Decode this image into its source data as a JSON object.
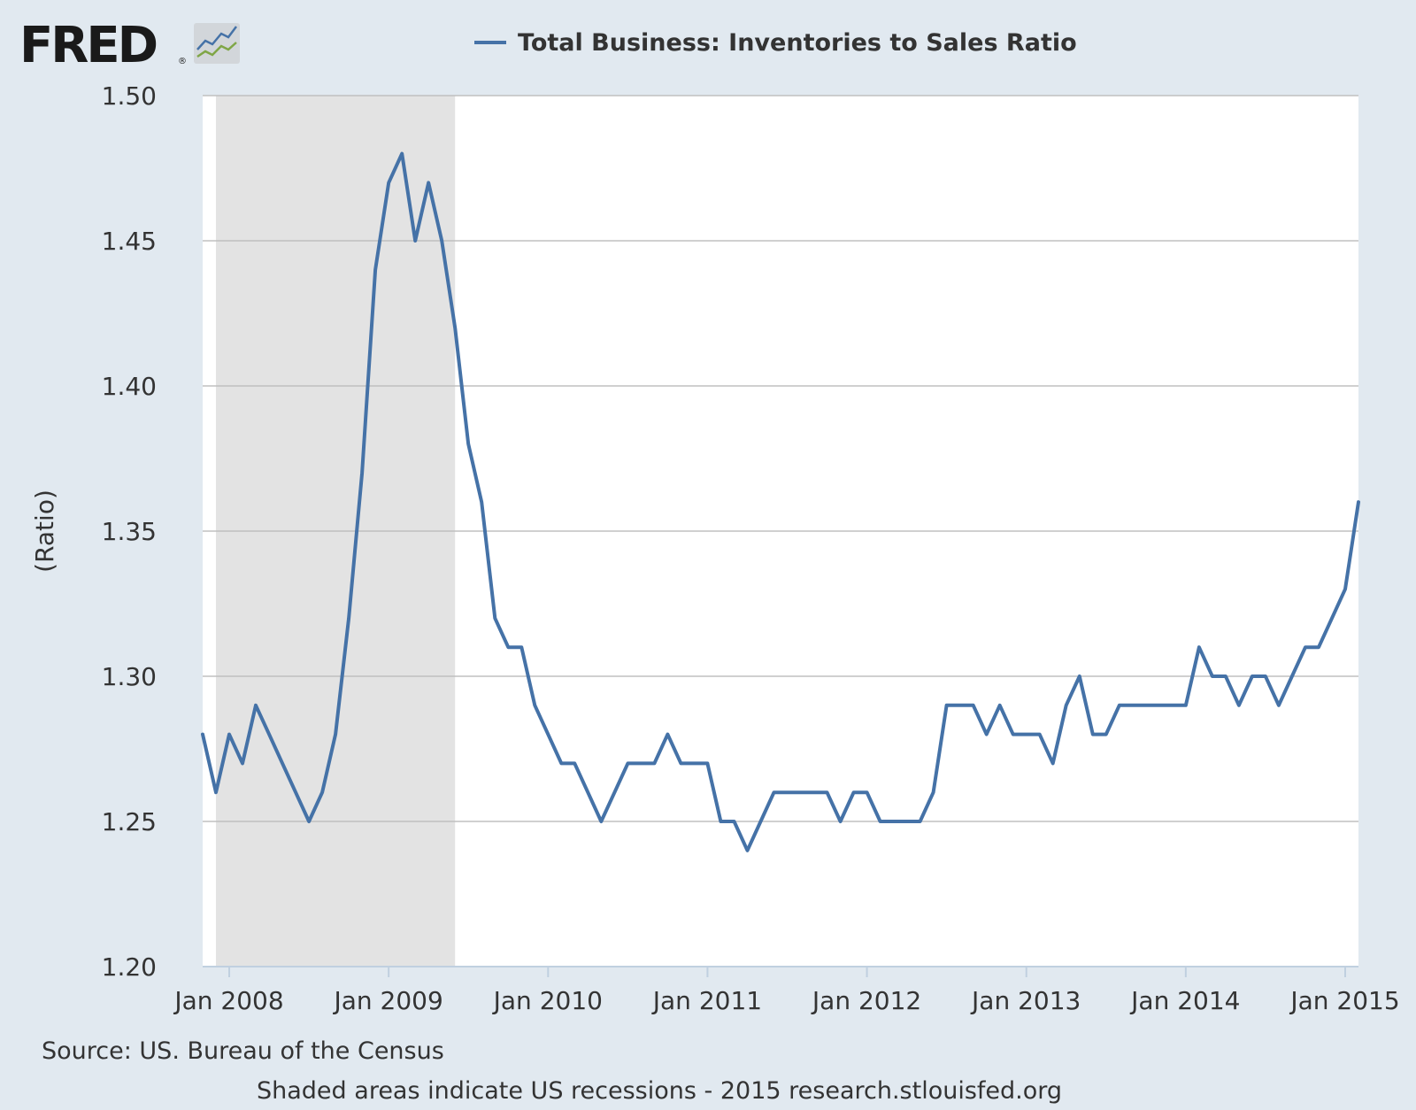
{
  "header": {
    "logo_text": "FRED",
    "logo_registered": "®",
    "legend_label": "Total Business: Inventories to Sales Ratio"
  },
  "footer": {
    "source": "Source: US. Bureau of the Census",
    "note": "Shaded areas indicate US recessions - 2015 research.stlouisfed.org"
  },
  "colors": {
    "background": "#e1e9f0",
    "plot_background": "#ffffff",
    "series": "#4572a7",
    "recession": "#e3e3e3",
    "grid": "#c0c0c0",
    "text": "#333333"
  },
  "icons": {
    "logo_chart": "fred-line-chart-icon"
  },
  "chart_data": {
    "type": "line",
    "title": "",
    "xlabel": "",
    "ylabel": "(Ratio)",
    "ylim": [
      1.2,
      1.5
    ],
    "xlim": [
      "2007-11",
      "2015-02"
    ],
    "yticks": [
      "1.20",
      "1.25",
      "1.30",
      "1.35",
      "1.40",
      "1.45",
      "1.50"
    ],
    "xticks": [
      {
        "label": "Jan 2008",
        "date": "2008-01"
      },
      {
        "label": "Jan 2009",
        "date": "2009-01"
      },
      {
        "label": "Jan 2010",
        "date": "2010-01"
      },
      {
        "label": "Jan 2011",
        "date": "2011-01"
      },
      {
        "label": "Jan 2012",
        "date": "2012-01"
      },
      {
        "label": "Jan 2013",
        "date": "2013-01"
      },
      {
        "label": "Jan 2014",
        "date": "2014-01"
      },
      {
        "label": "Jan 2015",
        "date": "2015-01"
      }
    ],
    "grid": true,
    "legend": "top",
    "recessions": [
      {
        "start": "2007-12",
        "end": "2009-06"
      }
    ],
    "series": [
      {
        "name": "Total Business: Inventories to Sales Ratio",
        "x": [
          "2007-11",
          "2007-12",
          "2008-01",
          "2008-02",
          "2008-03",
          "2008-04",
          "2008-05",
          "2008-06",
          "2008-07",
          "2008-08",
          "2008-09",
          "2008-10",
          "2008-11",
          "2008-12",
          "2009-01",
          "2009-02",
          "2009-03",
          "2009-04",
          "2009-05",
          "2009-06",
          "2009-07",
          "2009-08",
          "2009-09",
          "2009-10",
          "2009-11",
          "2009-12",
          "2010-01",
          "2010-02",
          "2010-03",
          "2010-04",
          "2010-05",
          "2010-06",
          "2010-07",
          "2010-08",
          "2010-09",
          "2010-10",
          "2010-11",
          "2010-12",
          "2011-01",
          "2011-02",
          "2011-03",
          "2011-04",
          "2011-05",
          "2011-06",
          "2011-07",
          "2011-08",
          "2011-09",
          "2011-10",
          "2011-11",
          "2011-12",
          "2012-01",
          "2012-02",
          "2012-03",
          "2012-04",
          "2012-05",
          "2012-06",
          "2012-07",
          "2012-08",
          "2012-09",
          "2012-10",
          "2012-11",
          "2012-12",
          "2013-01",
          "2013-02",
          "2013-03",
          "2013-04",
          "2013-05",
          "2013-06",
          "2013-07",
          "2013-08",
          "2013-09",
          "2013-10",
          "2013-11",
          "2013-12",
          "2014-01",
          "2014-02",
          "2014-03",
          "2014-04",
          "2014-05",
          "2014-06",
          "2014-07",
          "2014-08",
          "2014-09",
          "2014-10",
          "2014-11",
          "2014-12",
          "2015-01",
          "2015-02"
        ],
        "y": [
          1.28,
          1.26,
          1.28,
          1.27,
          1.29,
          1.28,
          1.27,
          1.26,
          1.25,
          1.26,
          1.28,
          1.32,
          1.37,
          1.44,
          1.47,
          1.48,
          1.45,
          1.47,
          1.45,
          1.42,
          1.38,
          1.36,
          1.32,
          1.31,
          1.31,
          1.29,
          1.28,
          1.27,
          1.27,
          1.26,
          1.25,
          1.26,
          1.27,
          1.27,
          1.27,
          1.28,
          1.27,
          1.27,
          1.27,
          1.25,
          1.25,
          1.24,
          1.25,
          1.26,
          1.26,
          1.26,
          1.26,
          1.26,
          1.25,
          1.26,
          1.26,
          1.25,
          1.25,
          1.25,
          1.25,
          1.26,
          1.29,
          1.29,
          1.29,
          1.28,
          1.29,
          1.28,
          1.28,
          1.28,
          1.27,
          1.29,
          1.3,
          1.28,
          1.28,
          1.29,
          1.29,
          1.29,
          1.29,
          1.29,
          1.29,
          1.31,
          1.3,
          1.3,
          1.29,
          1.3,
          1.3,
          1.29,
          1.3,
          1.31,
          1.31,
          1.32,
          1.33,
          1.36
        ]
      }
    ]
  }
}
